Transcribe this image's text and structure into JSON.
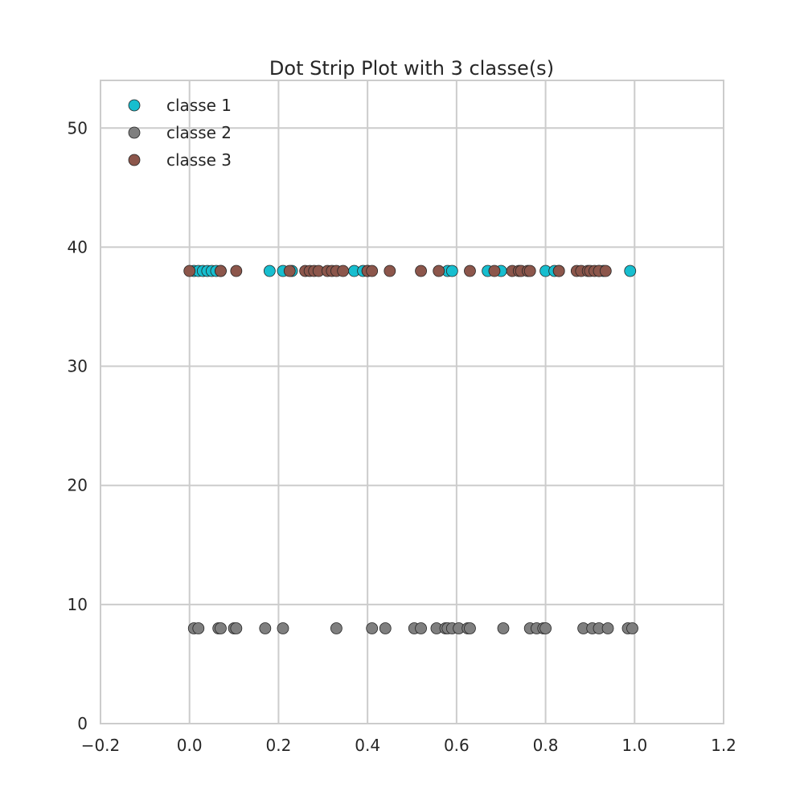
{
  "chart_data": {
    "type": "scatter",
    "title": "Dot Strip Plot with 3 classe(s)",
    "xlabel": "",
    "ylabel": "",
    "xlim": [
      -0.2,
      1.2
    ],
    "ylim": [
      0,
      54
    ],
    "x_ticks": [
      -0.2,
      0.0,
      0.2,
      0.4,
      0.6,
      0.8,
      1.0,
      1.2
    ],
    "x_tick_labels": [
      "−0.2",
      "0.0",
      "0.2",
      "0.4",
      "0.6",
      "0.8",
      "1.0",
      "1.2"
    ],
    "y_ticks": [
      0,
      10,
      20,
      30,
      40,
      50
    ],
    "y_tick_labels": [
      "0",
      "10",
      "20",
      "30",
      "40",
      "50"
    ],
    "grid": true,
    "legend_position": "top-left",
    "series": [
      {
        "name": "classe 1",
        "color": "#17becf",
        "y": 38,
        "x": [
          0.01,
          0.02,
          0.03,
          0.04,
          0.05,
          0.06,
          0.07,
          0.18,
          0.21,
          0.23,
          0.37,
          0.39,
          0.4,
          0.58,
          0.59,
          0.67,
          0.7,
          0.8,
          0.82,
          0.83,
          0.92,
          0.93,
          0.99
        ]
      },
      {
        "name": "classe 2",
        "color": "#7f7f7f",
        "y": 8,
        "x": [
          0.01,
          0.02,
          0.065,
          0.07,
          0.1,
          0.105,
          0.17,
          0.21,
          0.33,
          0.41,
          0.44,
          0.505,
          0.52,
          0.555,
          0.575,
          0.58,
          0.59,
          0.605,
          0.625,
          0.63,
          0.705,
          0.765,
          0.78,
          0.795,
          0.8,
          0.885,
          0.905,
          0.92,
          0.94,
          0.985,
          0.995
        ]
      },
      {
        "name": "classe 3",
        "color": "#8c564b",
        "y": 38,
        "x": [
          0.0,
          0.07,
          0.105,
          0.225,
          0.26,
          0.27,
          0.28,
          0.29,
          0.31,
          0.32,
          0.33,
          0.345,
          0.4,
          0.41,
          0.45,
          0.52,
          0.56,
          0.63,
          0.685,
          0.725,
          0.74,
          0.745,
          0.76,
          0.765,
          0.83,
          0.87,
          0.88,
          0.895,
          0.9,
          0.91,
          0.92,
          0.935
        ]
      }
    ]
  }
}
